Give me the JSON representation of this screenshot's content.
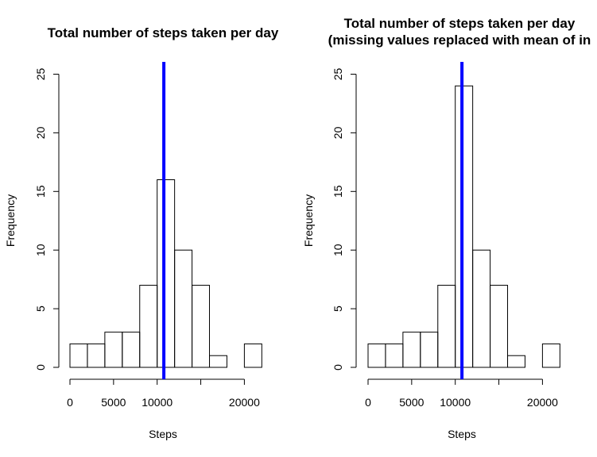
{
  "chart_data": [
    {
      "type": "bar",
      "title": "Total number of steps taken per day",
      "xlabel": "Steps",
      "ylabel": "Frequency",
      "bin_edges": [
        0,
        2000,
        4000,
        6000,
        8000,
        10000,
        12000,
        14000,
        16000,
        18000,
        20000,
        22000
      ],
      "values": [
        2,
        2,
        3,
        3,
        7,
        16,
        10,
        7,
        1,
        0,
        2
      ],
      "xticks": [
        0,
        5000,
        10000,
        20000
      ],
      "xticks_drawn": [
        0,
        5000,
        10000,
        15000,
        20000
      ],
      "yticks": [
        0,
        5,
        10,
        15,
        20,
        25
      ],
      "ylim": [
        0,
        25
      ],
      "mean_line": 10766,
      "mean_line_color": "#0000ff"
    },
    {
      "type": "bar",
      "title": "Total number of steps taken per day\n(missing values replaced with mean of in",
      "xlabel": "Steps",
      "ylabel": "Frequency",
      "bin_edges": [
        0,
        2000,
        4000,
        6000,
        8000,
        10000,
        12000,
        14000,
        16000,
        18000,
        20000,
        22000
      ],
      "values": [
        2,
        2,
        3,
        3,
        7,
        24,
        10,
        7,
        1,
        0,
        2
      ],
      "xticks": [
        0,
        5000,
        10000,
        20000
      ],
      "xticks_drawn": [
        0,
        5000,
        10000,
        15000,
        20000
      ],
      "yticks": [
        0,
        5,
        10,
        15,
        20,
        25
      ],
      "ylim": [
        0,
        25
      ],
      "mean_line": 10766,
      "mean_line_color": "#0000ff"
    }
  ]
}
